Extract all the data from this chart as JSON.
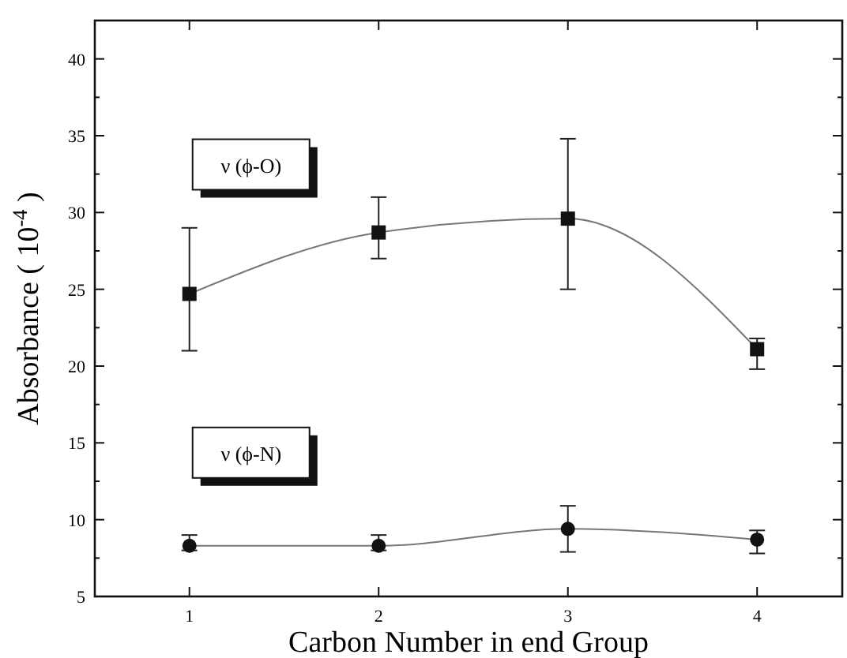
{
  "chart_data": {
    "type": "line",
    "xlabel": "Carbon Number in end Group",
    "ylabel": "Absorbance ( 10$^{-4}$ )",
    "x": [
      1,
      2,
      3,
      4
    ],
    "xlim": [
      0.5,
      4.45
    ],
    "xticks": [
      1,
      2,
      3,
      4
    ],
    "ylim": [
      5,
      42.5
    ],
    "yticks": [
      5,
      {
        "value": 7.5,
        "label": null
      },
      10,
      {
        "value": 12.5,
        "label": null
      },
      15,
      {
        "value": 17.5,
        "label": null
      },
      20,
      {
        "value": 22.5,
        "label": null
      },
      25,
      {
        "value": 27.5,
        "label": null
      },
      30,
      {
        "value": 32.5,
        "label": null
      },
      35,
      {
        "value": 37.5,
        "label": null
      },
      40
    ],
    "grid": false,
    "series": [
      {
        "name": "ν (ϕ-O)",
        "color": "#111111",
        "marker": "square",
        "values": [
          24.7,
          28.7,
          29.6,
          21.1
        ],
        "errors": [
          [
            21,
            29
          ],
          [
            27,
            31
          ],
          [
            25,
            34.8
          ],
          [
            19.8,
            21.8
          ]
        ]
      },
      {
        "name": "ν (ϕ-N)",
        "color": "#111111",
        "marker": "circle",
        "values": [
          8.3,
          8.3,
          9.4,
          8.7
        ],
        "errors": [
          [
            8,
            9
          ],
          [
            8,
            9
          ],
          [
            7.9,
            10.9
          ],
          [
            7.8,
            9.3
          ]
        ]
      }
    ]
  }
}
